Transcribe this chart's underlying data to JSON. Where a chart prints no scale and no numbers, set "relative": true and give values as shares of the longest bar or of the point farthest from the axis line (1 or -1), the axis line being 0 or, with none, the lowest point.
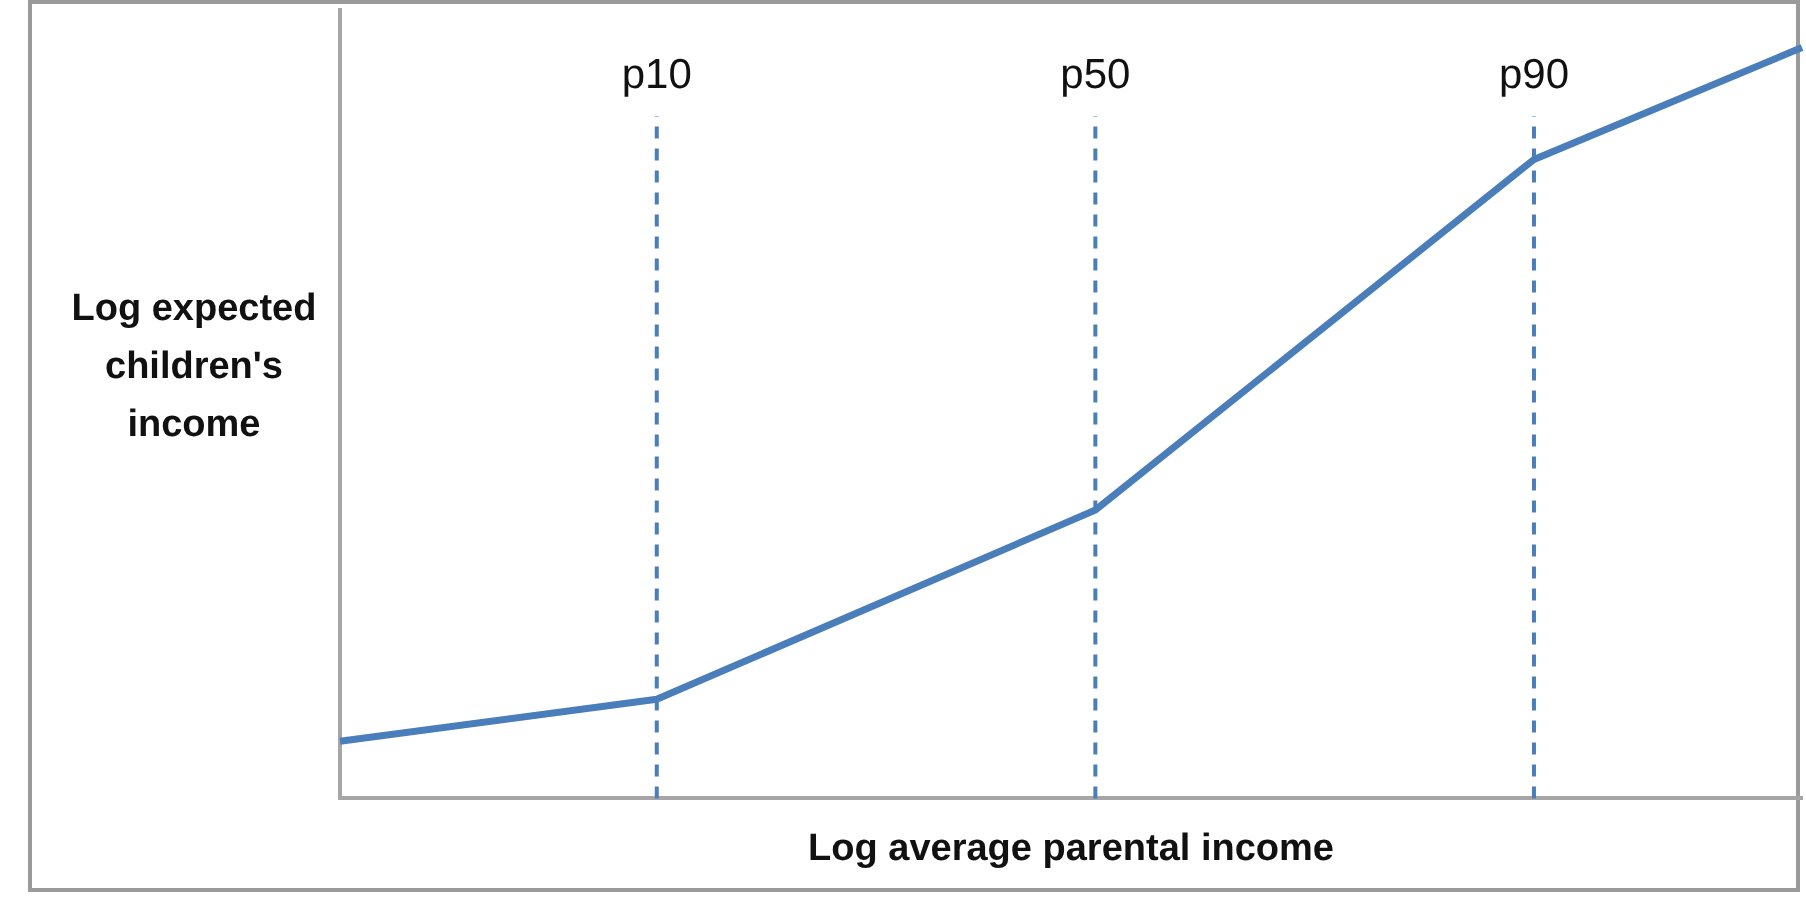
{
  "chart_data": {
    "type": "line",
    "relative": true,
    "xlabel": "Log average parental income",
    "ylabel": "Log expected children's income",
    "categories": [
      null,
      null,
      null,
      null,
      null,
      null,
      null,
      null,
      null,
      null,
      null,
      null,
      null,
      "p10",
      null,
      null,
      null,
      null,
      null,
      null,
      null,
      null,
      null,
      null,
      null,
      null,
      null,
      null,
      null,
      null,
      null,
      "p50",
      null,
      null,
      null,
      null,
      null,
      null,
      null,
      null,
      null,
      null,
      null,
      null,
      null,
      null,
      null,
      null,
      null,
      "p90",
      null,
      null,
      null,
      null,
      null,
      null,
      null,
      null,
      null,
      null,
      null
    ],
    "legend": false,
    "marker": "none",
    "line_style": "solid",
    "series": [
      {
        "color": "#4a7ebb",
        "values": [
          0.076,
          null,
          null,
          null,
          null,
          null,
          null,
          null,
          null,
          null,
          null,
          null,
          null,
          0.132,
          null,
          null,
          null,
          null,
          null,
          null,
          null,
          null,
          null,
          null,
          null,
          null,
          null,
          null,
          null,
          null,
          null,
          0.384,
          null,
          null,
          null,
          null,
          null,
          null,
          null,
          null,
          null,
          null,
          null,
          null,
          null,
          null,
          null,
          null,
          null,
          0.851,
          null,
          null,
          null,
          null,
          null,
          null,
          null,
          null,
          null,
          null,
          1
        ]
      }
    ],
    "ref_lines": [
      {
        "axis": "x",
        "value": "p10",
        "color": "#4a7ebb",
        "line_style": "dashed"
      },
      {
        "axis": "x",
        "value": "p50",
        "color": "#4a7ebb",
        "line_style": "dashed"
      },
      {
        "axis": "x",
        "value": "p90",
        "color": "#4a7ebb",
        "line_style": "dashed"
      }
    ]
  }
}
